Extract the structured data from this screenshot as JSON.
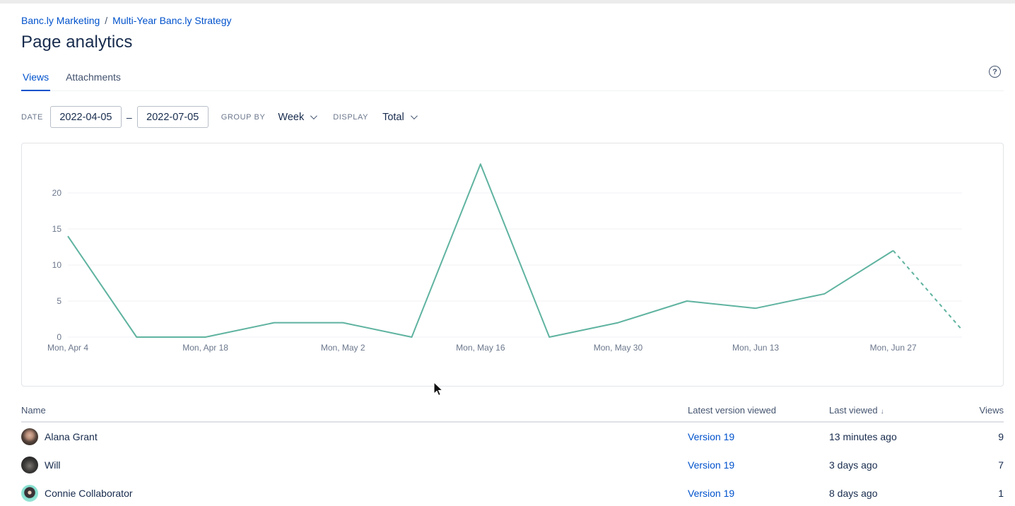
{
  "breadcrumb": {
    "items": [
      "Banc.ly Marketing",
      "Multi-Year Banc.ly Strategy"
    ],
    "separator": "/"
  },
  "page": {
    "title": "Page analytics"
  },
  "tabs": [
    {
      "label": "Views",
      "active": true
    },
    {
      "label": "Attachments",
      "active": false
    }
  ],
  "help": {
    "glyph": "?"
  },
  "filters": {
    "date_label": "DATE",
    "date_from": "2022-04-05",
    "date_separator": "–",
    "date_to": "2022-07-05",
    "group_by_label": "GROUP BY",
    "group_by_value": "Week",
    "display_label": "DISPLAY",
    "display_value": "Total"
  },
  "chart_data": {
    "type": "line",
    "title": "",
    "xlabel": "",
    "ylabel": "",
    "x": [
      "Mon, Apr 4",
      "Mon, Apr 11",
      "Mon, Apr 18",
      "Mon, Apr 25",
      "Mon, May 2",
      "Mon, May 9",
      "Mon, May 16",
      "Mon, May 23",
      "Mon, May 30",
      "Mon, Jun 6",
      "Mon, Jun 13",
      "Mon, Jun 20",
      "Mon, Jun 27",
      "Mon, Jul 4"
    ],
    "values": [
      14,
      0,
      0,
      2,
      2,
      0,
      24,
      0,
      2,
      5,
      4,
      6,
      12,
      1
    ],
    "x_tick_labels": [
      "Mon, Apr 4",
      "Mon, Apr 18",
      "Mon, May 2",
      "Mon, May 16",
      "Mon, May 30",
      "Mon, Jun 13",
      "Mon, Jun 27"
    ],
    "y_ticks": [
      0,
      5,
      10,
      15,
      20
    ],
    "ylim": [
      0,
      25
    ],
    "grid": true,
    "legend": "none",
    "line_color": "#5FB3A0",
    "dashed_tail_points": 1,
    "dashed_tail_note": "last segment (current incomplete week) is dashed"
  },
  "table": {
    "columns": [
      {
        "label": "Name"
      },
      {
        "label": "Latest version viewed"
      },
      {
        "label": "Last viewed",
        "sort": "↓"
      },
      {
        "label": "Views"
      }
    ],
    "rows": [
      {
        "name": "Alana Grant",
        "version": "Version 19",
        "last_viewed": "13 minutes ago",
        "views": "9"
      },
      {
        "name": "Will",
        "version": "Version 19",
        "last_viewed": "3 days ago",
        "views": "7"
      },
      {
        "name": "Connie Collaborator",
        "version": "Version 19",
        "last_viewed": "8 days ago",
        "views": "1"
      }
    ]
  },
  "colors": {
    "link_blue": "#0052CC",
    "text_dark": "#172B4D",
    "text_muted": "#6B778C",
    "gridline": "#F1F2F4",
    "axis_label": "#6B778C",
    "border": "#DFE1E6",
    "line": "#5FB3A0"
  }
}
